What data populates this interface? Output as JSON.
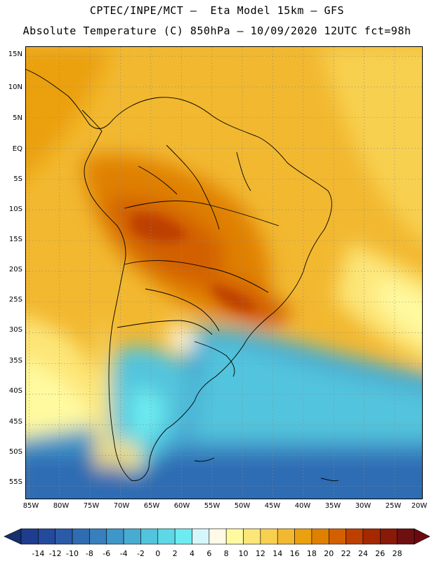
{
  "header": {
    "line1": "CPTEC/INPE/MCT –  Eta Model 15km – GFS",
    "line2": "Absolute Temperature (C) 850hPa – 10/09/2020 12UTC fct=98h"
  },
  "axes": {
    "lat_labels": [
      "15N",
      "10N",
      "5N",
      "EQ",
      "5S",
      "10S",
      "15S",
      "20S",
      "25S",
      "30S",
      "35S",
      "40S",
      "45S",
      "50S",
      "55S"
    ],
    "lon_labels": [
      "85W",
      "80W",
      "75W",
      "70W",
      "65W",
      "60W",
      "55W",
      "50W",
      "45W",
      "40W",
      "35W",
      "30W",
      "25W",
      "20W"
    ],
    "lat_range": [
      -57,
      16.5
    ],
    "lon_range": [
      -85.5,
      -20.5
    ]
  },
  "colorbar": {
    "labels": [
      "-14",
      "-12",
      "-10",
      "-8",
      "-6",
      "-4",
      "-2",
      "0",
      "2",
      "4",
      "6",
      "8",
      "10",
      "12",
      "14",
      "16",
      "18",
      "20",
      "22",
      "24",
      "26",
      "28"
    ],
    "colors": [
      "#1e3d8f",
      "#234a9c",
      "#2a5aa8",
      "#2f6cb3",
      "#3780bd",
      "#3f96c8",
      "#48acd2",
      "#52c4dd",
      "#5dd8e6",
      "#6cecf0",
      "#d4f7fb",
      "#fff9e6",
      "#fffaa0",
      "#fde678",
      "#f8d050",
      "#f2b830",
      "#eba010",
      "#e08000",
      "#d26000",
      "#be4000",
      "#a52800",
      "#8a1a08",
      "#6e1010"
    ],
    "under_color": "#16306e",
    "over_color": "#6a0a10"
  },
  "chart_data": {
    "type": "heatmap",
    "variable": "Absolute Temperature (C) 850hPa",
    "lat_ticks": [
      15,
      10,
      5,
      0,
      -5,
      -10,
      -15,
      -20,
      -25,
      -30,
      -35,
      -40,
      -45,
      -50,
      -55
    ],
    "lon_ticks": [
      -85,
      -80,
      -75,
      -70,
      -65,
      -60,
      -55,
      -50,
      -45,
      -40,
      -35,
      -30,
      -25,
      -20
    ],
    "value_range": [
      -14,
      28
    ],
    "grid": true
  }
}
